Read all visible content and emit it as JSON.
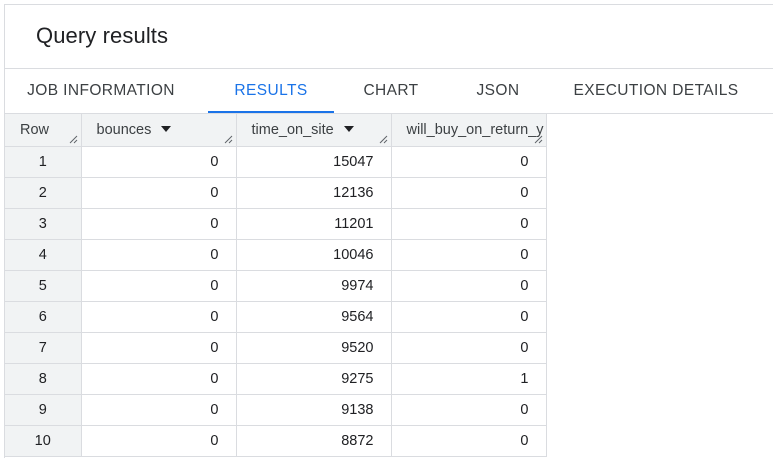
{
  "panel": {
    "title": "Query results"
  },
  "tabs": [
    {
      "label": "JOB INFORMATION",
      "active": false
    },
    {
      "label": "RESULTS",
      "active": true
    },
    {
      "label": "CHART",
      "active": false
    },
    {
      "label": "JSON",
      "active": false
    },
    {
      "label": "EXECUTION DETAILS",
      "active": false
    }
  ],
  "table": {
    "columns": [
      "Row",
      "bounces",
      "time_on_site",
      "will_buy_on_return_y"
    ],
    "rows": [
      [
        "1",
        "0",
        "15047",
        "0"
      ],
      [
        "2",
        "0",
        "12136",
        "0"
      ],
      [
        "3",
        "0",
        "11201",
        "0"
      ],
      [
        "4",
        "0",
        "10046",
        "0"
      ],
      [
        "5",
        "0",
        "9974",
        "0"
      ],
      [
        "6",
        "0",
        "9564",
        "0"
      ],
      [
        "7",
        "0",
        "9520",
        "0"
      ],
      [
        "8",
        "0",
        "9275",
        "1"
      ],
      [
        "9",
        "0",
        "9138",
        "0"
      ],
      [
        "10",
        "0",
        "8872",
        "0"
      ]
    ]
  },
  "colors": {
    "accent": "#1a73e8",
    "header_bg": "#f1f3f4",
    "border": "#dadce0"
  },
  "icons": {
    "sort": "triangle-down",
    "resize": "diagonal-lines"
  }
}
